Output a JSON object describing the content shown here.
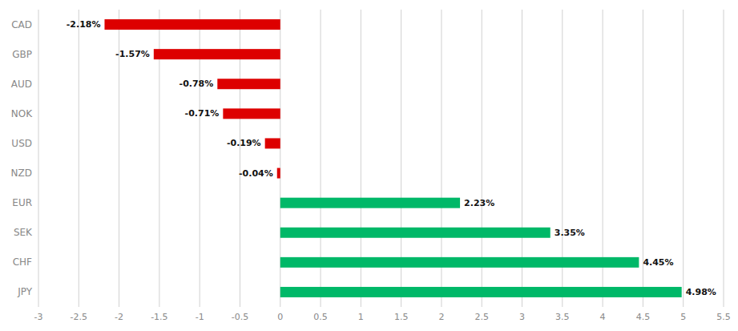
{
  "chart_data": {
    "type": "bar",
    "orientation": "horizontal",
    "categories": [
      "CAD",
      "GBP",
      "AUD",
      "NOK",
      "USD",
      "NZD",
      "EUR",
      "SEK",
      "CHF",
      "JPY"
    ],
    "values": [
      -2.18,
      -1.57,
      -0.78,
      -0.71,
      -0.19,
      -0.04,
      2.23,
      3.35,
      4.45,
      4.98
    ],
    "value_labels": [
      "-2.18%",
      "-1.57%",
      "-0.78%",
      "-0.71%",
      "-0.19%",
      "-0.04%",
      "2.23%",
      "3.35%",
      "4.45%",
      "4.98%"
    ],
    "colors": [
      "#dd0000",
      "#dd0000",
      "#dd0000",
      "#dd0000",
      "#dd0000",
      "#dd0000",
      "#00b868",
      "#00b868",
      "#00b868",
      "#00b868"
    ],
    "data_labels": true,
    "xlim": [
      -3,
      5.5
    ],
    "xticks": [
      -3,
      -2.5,
      -2,
      -1.5,
      -1,
      -0.5,
      0,
      0.5,
      1,
      1.5,
      2,
      2.5,
      3,
      3.5,
      4,
      4.5,
      5,
      5.5
    ],
    "grid": true
  }
}
